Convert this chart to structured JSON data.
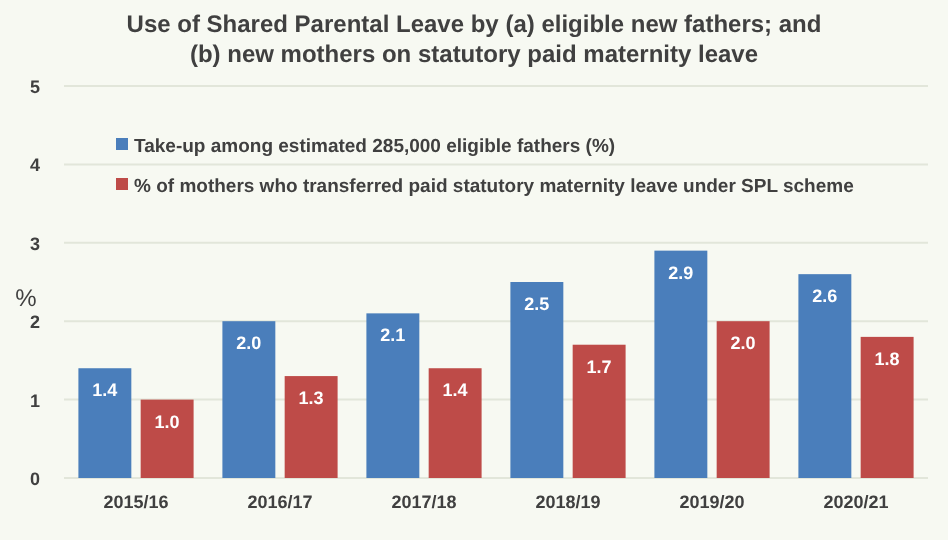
{
  "chart_data": {
    "type": "bar",
    "title": "Use of Shared Parental Leave by (a) eligible new fathers; and (b) new mothers on statutory paid maternity leave",
    "ylabel": "%",
    "categories": [
      "2015/16",
      "2016/17",
      "2017/18",
      "2018/19",
      "2019/20",
      "2020/21"
    ],
    "series": [
      {
        "name": "Take-up among estimated 285,000 eligible fathers (%)",
        "color": "#4a7ebb",
        "values": [
          1.4,
          2.0,
          2.1,
          2.5,
          2.9,
          2.6
        ],
        "value_labels": [
          "1.4",
          "2.0",
          "2.1",
          "2.5",
          "2.9",
          "2.6"
        ]
      },
      {
        "name": "% of mothers who transferred paid statutory maternity leave under SPL scheme",
        "color": "#be4b48",
        "values": [
          1.0,
          1.3,
          1.4,
          1.7,
          2.0,
          1.8
        ],
        "value_labels": [
          "1.0",
          "1.3",
          "1.4",
          "1.7",
          "2.0",
          "1.8"
        ]
      }
    ],
    "ylim": [
      0,
      5
    ],
    "yticks": [
      0,
      1,
      2,
      3,
      4,
      5
    ],
    "grid": "y",
    "legend": "top left"
  }
}
